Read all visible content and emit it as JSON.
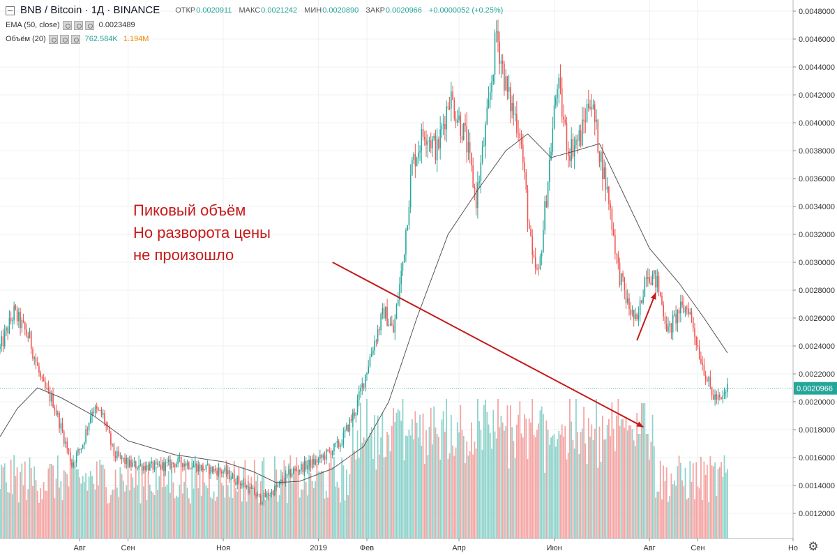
{
  "header": {
    "symbol": "BNB / Bitcoin · 1Д · BINANCE",
    "open_label": "ОТКР",
    "open": "0.0020911",
    "high_label": "МАКС",
    "high": "0.0021242",
    "low_label": "МИН",
    "low": "0.0020890",
    "close_label": "ЗАКР",
    "close": "0.0020966",
    "change": "+0.0000052 (+0.25%)"
  },
  "indicators": [
    {
      "name": "EMA (50, close)",
      "value": "0.0023489"
    },
    {
      "name": "Объём (20)",
      "value": "762.584K",
      "value2": "1.194M"
    }
  ],
  "annotation": {
    "lines": [
      "Пиковый объём",
      "Но разворота цены",
      "не произошло"
    ]
  },
  "colors": {
    "up": "#26a69a",
    "down": "#ef5350",
    "vol_up": "#8fd3cb",
    "vol_down": "#f4a5a3",
    "ema": "#555555",
    "annotation": "#c61a1a",
    "last_price": "#26a69a"
  },
  "icons": {
    "settings": "gear-icon"
  },
  "chart_data": {
    "type": "candlestick",
    "title": "BNB / Bitcoin · 1Д · BINANCE",
    "x_ticks": [
      {
        "date": "2018-08-01",
        "label": "Авг"
      },
      {
        "date": "2018-09-01",
        "label": "Сен"
      },
      {
        "date": "2018-11-01",
        "label": "Ноя"
      },
      {
        "date": "2019-01-01",
        "label": "2019"
      },
      {
        "date": "2019-02-01",
        "label": "Фев"
      },
      {
        "date": "2019-04-01",
        "label": "Апр"
      },
      {
        "date": "2019-06-01",
        "label": "Июн"
      },
      {
        "date": "2019-08-01",
        "label": "Авг"
      },
      {
        "date": "2019-09-01",
        "label": "Сен"
      },
      {
        "date": "2019-11-01",
        "label": "Но"
      }
    ],
    "x_range": [
      "2018-06-11",
      "2019-11-01"
    ],
    "y_ticks": [
      "0.0012000",
      "0.0014000",
      "0.0016000",
      "0.0018000",
      "0.0020000",
      "0.0022000",
      "0.0024000",
      "0.0026000",
      "0.0028000",
      "0.0030000",
      "0.0032000",
      "0.0034000",
      "0.0036000",
      "0.0038000",
      "0.0040000",
      "0.0042000",
      "0.0044000",
      "0.0046000",
      "0.0048000"
    ],
    "ylim": [
      0.00102,
      0.00488
    ],
    "last_price": "0.0020966",
    "series": [
      {
        "name": "BNB / Bitcoin",
        "type": "candlestick",
        "close_path": [
          [
            "2018-06-11",
            0.00238
          ],
          [
            "2018-06-20",
            0.00264
          ],
          [
            "2018-06-30",
            0.00245
          ],
          [
            "2018-07-08",
            0.00212
          ],
          [
            "2018-07-15",
            0.002
          ],
          [
            "2018-07-21",
            0.00178
          ],
          [
            "2018-07-27",
            0.00155
          ],
          [
            "2018-08-03",
            0.0017
          ],
          [
            "2018-08-09",
            0.00195
          ],
          [
            "2018-08-16",
            0.0019
          ],
          [
            "2018-08-23",
            0.00162
          ],
          [
            "2018-09-02",
            0.00155
          ],
          [
            "2018-09-20",
            0.00153
          ],
          [
            "2018-10-05",
            0.00157
          ],
          [
            "2018-10-20",
            0.00152
          ],
          [
            "2018-11-01",
            0.0015
          ],
          [
            "2018-11-15",
            0.0014
          ],
          [
            "2018-11-25",
            0.0013
          ],
          [
            "2018-12-02",
            0.00135
          ],
          [
            "2018-12-15",
            0.0015
          ],
          [
            "2019-01-01",
            0.00158
          ],
          [
            "2019-01-15",
            0.0017
          ],
          [
            "2019-01-25",
            0.00195
          ],
          [
            "2019-02-05",
            0.0024
          ],
          [
            "2019-02-12",
            0.00265
          ],
          [
            "2019-02-18",
            0.0025
          ],
          [
            "2019-02-24",
            0.003
          ],
          [
            "2019-03-02",
            0.0037
          ],
          [
            "2019-03-10",
            0.00395
          ],
          [
            "2019-03-18",
            0.0038
          ],
          [
            "2019-03-26",
            0.0042
          ],
          [
            "2019-04-05",
            0.0039
          ],
          [
            "2019-04-12",
            0.00345
          ],
          [
            "2019-04-20",
            0.0041
          ],
          [
            "2019-04-25",
            0.00465
          ],
          [
            "2019-05-02",
            0.0042
          ],
          [
            "2019-05-10",
            0.00395
          ],
          [
            "2019-05-18",
            0.003
          ],
          [
            "2019-05-22",
            0.0029
          ],
          [
            "2019-05-28",
            0.0036
          ],
          [
            "2019-06-03",
            0.0043
          ],
          [
            "2019-06-10",
            0.0038
          ],
          [
            "2019-06-18",
            0.0039
          ],
          [
            "2019-06-24",
            0.0042
          ],
          [
            "2019-06-30",
            0.0038
          ],
          [
            "2019-07-06",
            0.00345
          ],
          [
            "2019-07-12",
            0.00295
          ],
          [
            "2019-07-18",
            0.0027
          ],
          [
            "2019-07-24",
            0.00255
          ],
          [
            "2019-07-30",
            0.00295
          ],
          [
            "2019-08-06",
            0.00285
          ],
          [
            "2019-08-13",
            0.0025
          ],
          [
            "2019-08-20",
            0.00265
          ],
          [
            "2019-08-26",
            0.00268
          ],
          [
            "2019-09-02",
            0.00235
          ],
          [
            "2019-09-10",
            0.00205
          ],
          [
            "2019-09-16",
            0.002
          ],
          [
            "2019-09-20",
            0.0021
          ]
        ]
      },
      {
        "name": "EMA (50, close)",
        "type": "line",
        "points": [
          [
            "2018-06-11",
            0.00175
          ],
          [
            "2018-06-22",
            0.00195
          ],
          [
            "2018-07-05",
            0.0021
          ],
          [
            "2018-07-20",
            0.00203
          ],
          [
            "2018-08-10",
            0.0019
          ],
          [
            "2018-09-01",
            0.00172
          ],
          [
            "2018-10-01",
            0.00162
          ],
          [
            "2018-11-01",
            0.00157
          ],
          [
            "2018-11-20",
            0.0015
          ],
          [
            "2018-12-05",
            0.00142
          ],
          [
            "2018-12-20",
            0.00143
          ],
          [
            "2019-01-10",
            0.00152
          ],
          [
            "2019-01-30",
            0.00168
          ],
          [
            "2019-02-15",
            0.002
          ],
          [
            "2019-03-05",
            0.0026
          ],
          [
            "2019-03-25",
            0.0032
          ],
          [
            "2019-04-15",
            0.00355
          ],
          [
            "2019-05-01",
            0.0038
          ],
          [
            "2019-05-15",
            0.00392
          ],
          [
            "2019-05-30",
            0.00375
          ],
          [
            "2019-06-15",
            0.0038
          ],
          [
            "2019-06-30",
            0.00385
          ],
          [
            "2019-07-15",
            0.0035
          ],
          [
            "2019-08-01",
            0.0031
          ],
          [
            "2019-08-20",
            0.00285
          ],
          [
            "2019-09-05",
            0.0026
          ],
          [
            "2019-09-20",
            0.00235
          ]
        ]
      },
      {
        "name": "Объём (20)",
        "type": "bar",
        "note": "volume histogram at bottom; peak volume bar around 2019-07-28"
      }
    ],
    "annotations": [
      {
        "text": "Пиковый объём\nНо разворота цены\nне произошло",
        "type": "arrow",
        "from": [
          "2019-01-10",
          0.003
        ],
        "to": [
          "2019-07-28",
          0.00182
        ]
      },
      {
        "type": "arrow",
        "from": [
          "2019-07-24",
          0.00244
        ],
        "to": [
          "2019-08-05",
          0.00278
        ]
      }
    ]
  }
}
